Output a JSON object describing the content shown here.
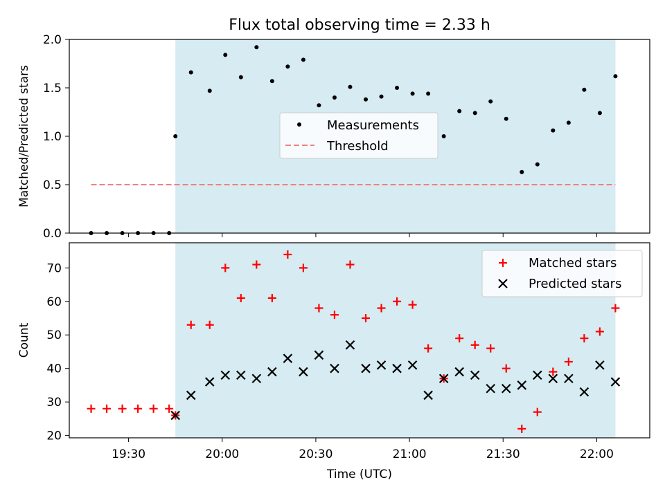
{
  "title": "Flux total observing time = 2.33 h",
  "xlabel": "Time (UTC)",
  "xticks": [
    {
      "label": "19:30",
      "t": 1170
    },
    {
      "label": "20:00",
      "t": 1200
    },
    {
      "label": "20:30",
      "t": 1230
    },
    {
      "label": "21:00",
      "t": 1260
    },
    {
      "label": "21:30",
      "t": 1290
    },
    {
      "label": "22:00",
      "t": 1320
    }
  ],
  "colors": {
    "shade": "#add8e6",
    "measurement": "#000000",
    "threshold": "#f08080",
    "matched": "#ff0000",
    "predicted": "#000000"
  },
  "chart_data": [
    {
      "type": "scatter",
      "ylabel": "Matched/Predicted stars",
      "ylim": [
        0,
        2.0
      ],
      "yticks": [
        "0.0",
        "0.5",
        "1.0",
        "1.5",
        "2.0"
      ],
      "shaded_interval": [
        "19:45",
        "22:06"
      ],
      "legend": {
        "placement": "center",
        "entries": [
          "Measurements",
          "Threshold"
        ]
      },
      "threshold": {
        "name": "Threshold",
        "value": 0.5,
        "x_range": [
          "19:18",
          "22:06"
        ]
      },
      "series": [
        {
          "name": "Measurements",
          "x": [
            "19:18",
            "19:23",
            "19:28",
            "19:33",
            "19:38",
            "19:43",
            "19:45",
            "19:50",
            "19:56",
            "20:01",
            "20:06",
            "20:11",
            "20:16",
            "20:21",
            "20:26",
            "20:31",
            "20:36",
            "20:41",
            "20:46",
            "20:51",
            "20:56",
            "21:01",
            "21:06",
            "21:11",
            "21:16",
            "21:21",
            "21:26",
            "21:31",
            "21:36",
            "21:41",
            "21:46",
            "21:51",
            "21:56",
            "22:01",
            "22:06"
          ],
          "y": [
            0.0,
            0.0,
            0.0,
            0.0,
            0.0,
            0.0,
            1.0,
            1.66,
            1.47,
            1.84,
            1.61,
            1.92,
            1.57,
            1.72,
            1.79,
            1.32,
            1.4,
            1.51,
            1.38,
            1.41,
            1.5,
            1.44,
            1.44,
            1.0,
            1.26,
            1.24,
            1.36,
            1.18,
            0.63,
            0.71,
            1.06,
            1.14,
            1.48,
            1.24,
            1.62
          ]
        }
      ]
    },
    {
      "type": "scatter",
      "ylabel": "Count",
      "ylim": [
        19.3,
        77.5
      ],
      "yticks": [
        "20",
        "30",
        "40",
        "50",
        "60",
        "70"
      ],
      "shaded_interval": [
        "19:45",
        "22:06"
      ],
      "legend": {
        "placement": "top-right",
        "entries": [
          "Matched stars",
          "Predicted stars"
        ]
      },
      "series": [
        {
          "name": "Matched stars",
          "x": [
            "19:18",
            "19:23",
            "19:28",
            "19:33",
            "19:38",
            "19:43",
            "19:45",
            "19:50",
            "19:56",
            "20:01",
            "20:06",
            "20:11",
            "20:16",
            "20:21",
            "20:26",
            "20:31",
            "20:36",
            "20:41",
            "20:46",
            "20:51",
            "20:56",
            "21:01",
            "21:06",
            "21:11",
            "21:16",
            "21:21",
            "21:26",
            "21:31",
            "21:36",
            "21:41",
            "21:46",
            "21:51",
            "21:56",
            "22:01",
            "22:06"
          ],
          "y": [
            28,
            28,
            28,
            28,
            28,
            28,
            26,
            53,
            53,
            70,
            61,
            71,
            61,
            74,
            70,
            58,
            56,
            71,
            55,
            58,
            60,
            59,
            46,
            37,
            49,
            47,
            46,
            40,
            22,
            27,
            39,
            42,
            49,
            51,
            58
          ]
        },
        {
          "name": "Predicted stars",
          "x": [
            "19:45",
            "19:50",
            "19:56",
            "20:01",
            "20:06",
            "20:11",
            "20:16",
            "20:21",
            "20:26",
            "20:31",
            "20:36",
            "20:41",
            "20:46",
            "20:51",
            "20:56",
            "21:01",
            "21:06",
            "21:11",
            "21:16",
            "21:21",
            "21:26",
            "21:31",
            "21:36",
            "21:41",
            "21:46",
            "21:51",
            "21:56",
            "22:01",
            "22:06"
          ],
          "y": [
            26,
            32,
            36,
            38,
            38,
            37,
            39,
            43,
            39,
            44,
            40,
            47,
            40,
            41,
            40,
            41,
            32,
            37,
            39,
            38,
            34,
            34,
            35,
            38,
            37,
            37,
            33,
            41,
            36
          ]
        }
      ]
    }
  ]
}
